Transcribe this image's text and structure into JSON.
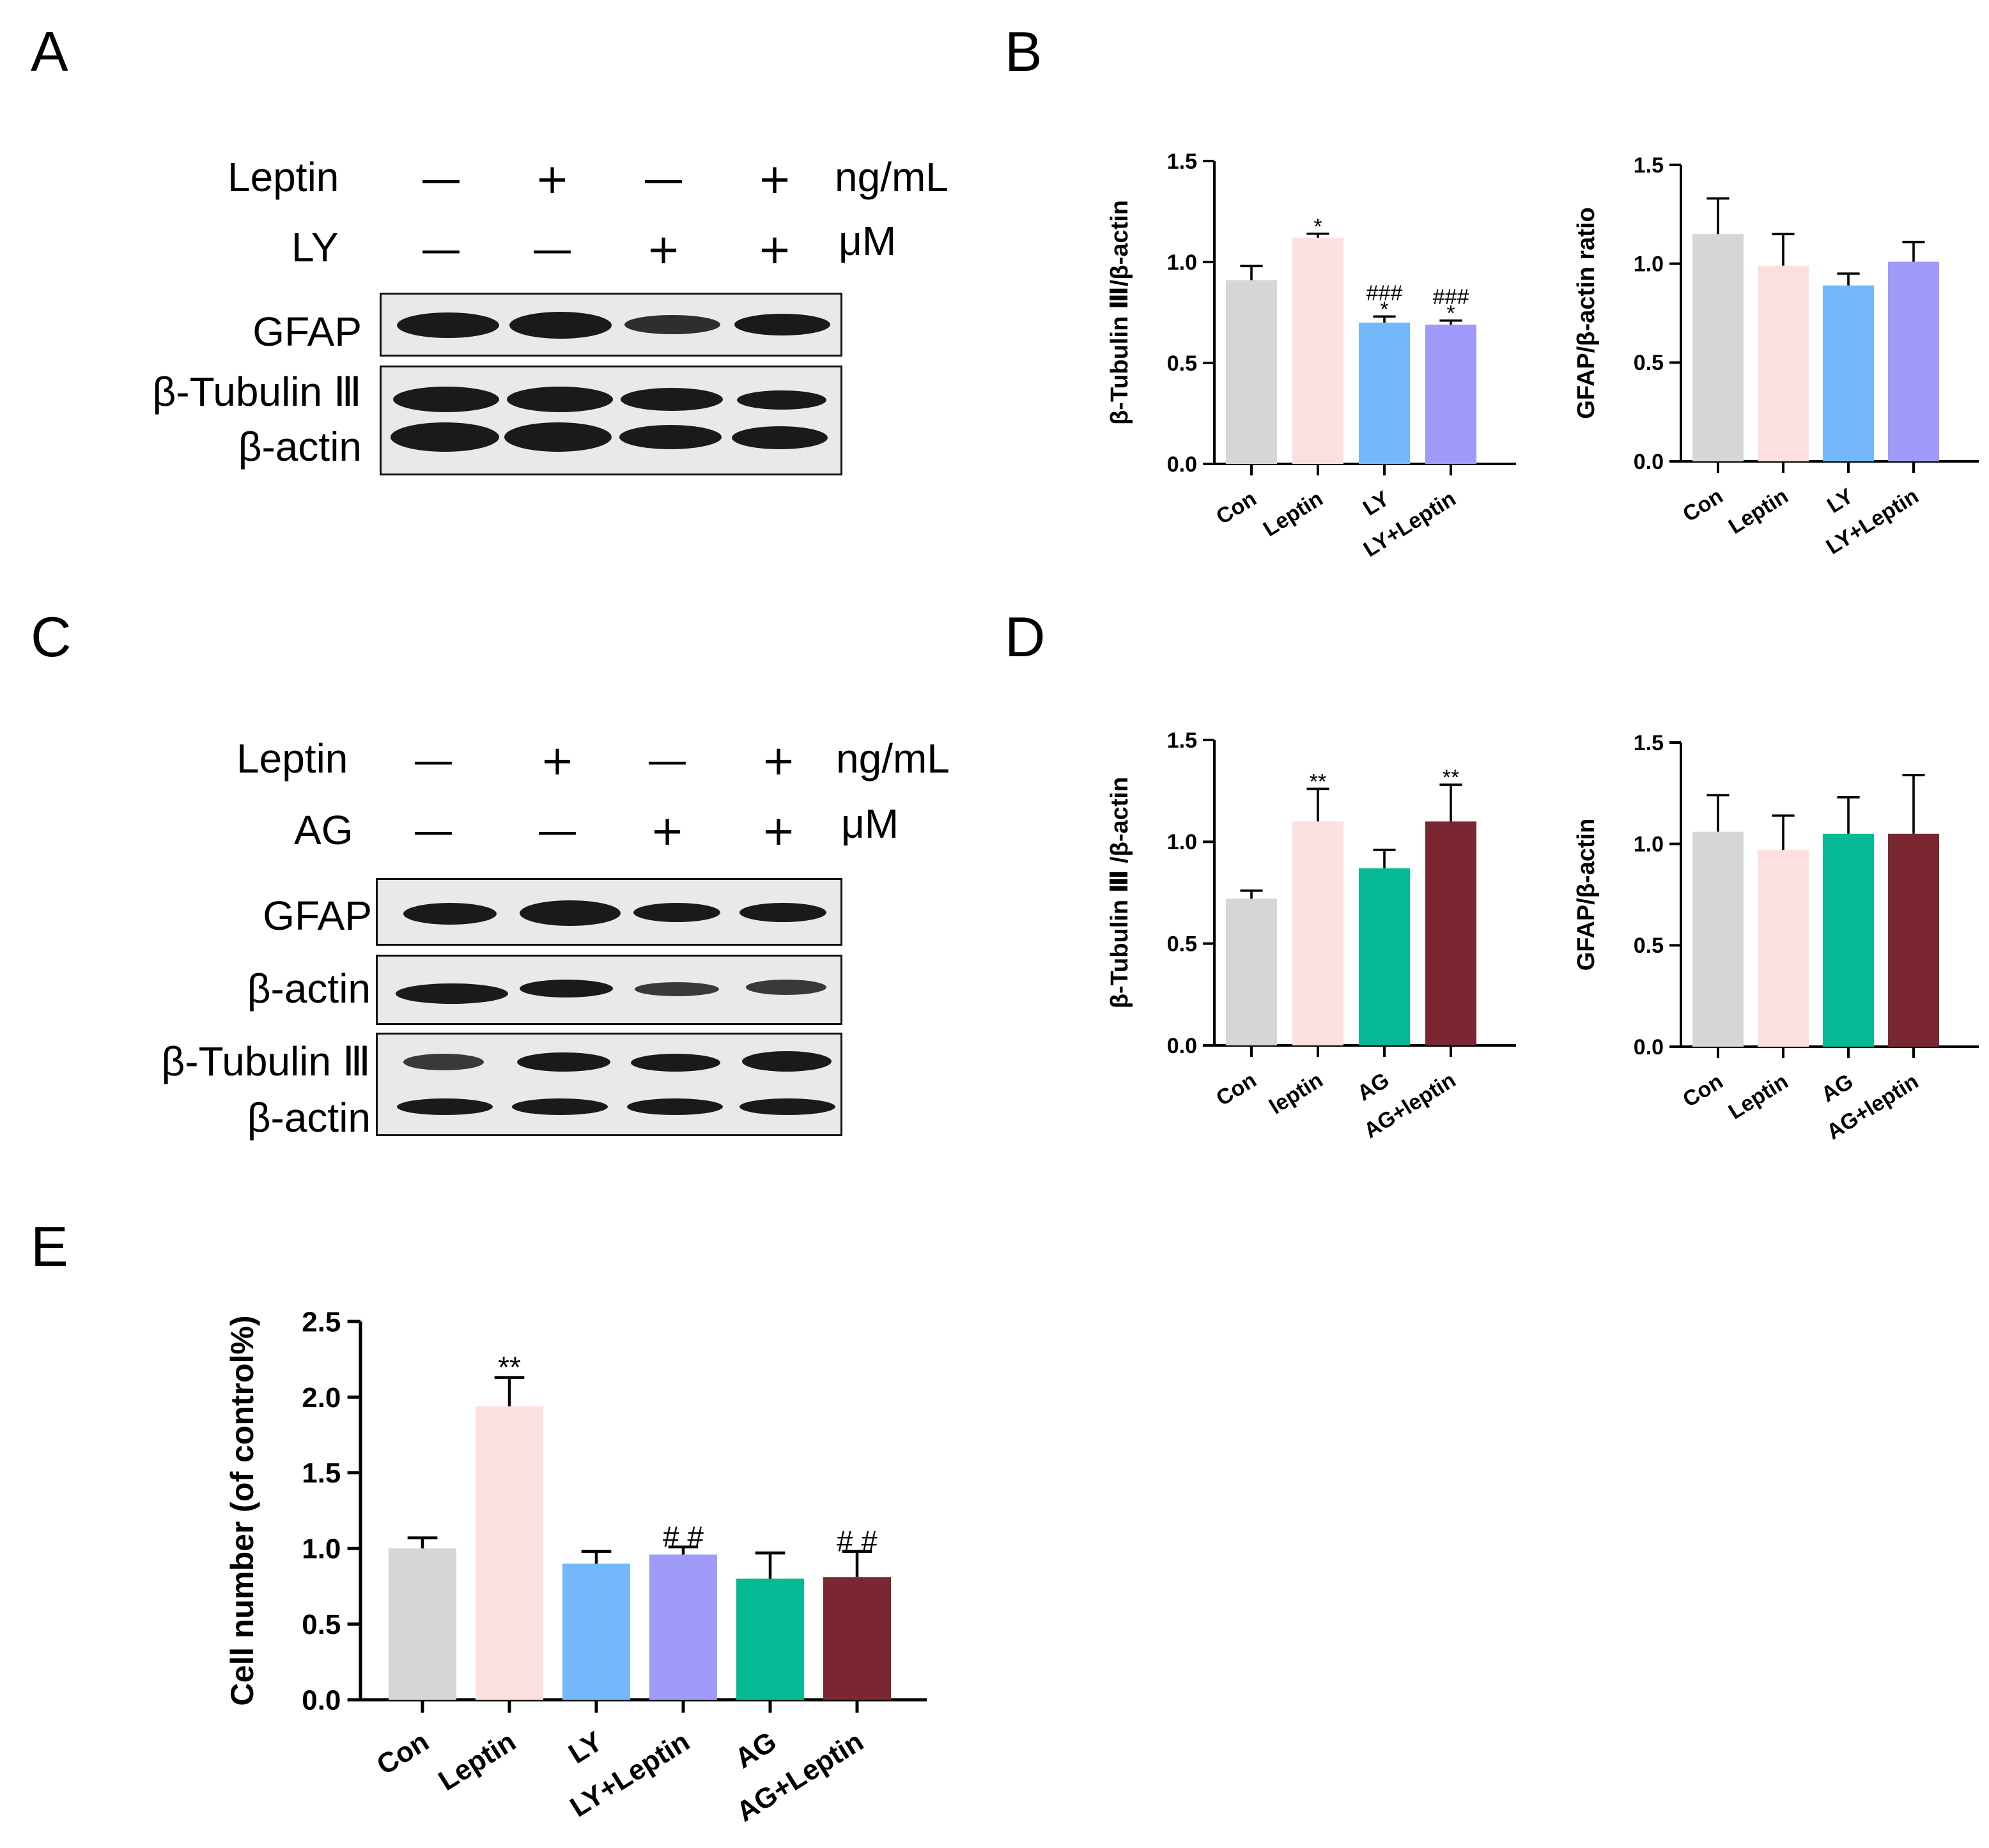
{
  "panel_labels": [
    "A",
    "B",
    "C",
    "D",
    "E"
  ],
  "blot_A": {
    "treatments": [
      {
        "name": "Leptin",
        "signs": [
          "—",
          "+",
          "—",
          "+"
        ],
        "unit": "ng/mL"
      },
      {
        "name": "LY",
        "signs": [
          "—",
          "—",
          "+",
          "+"
        ],
        "unit": "μM"
      }
    ],
    "rows": [
      "GFAP",
      "β-Tubulin Ⅲ",
      "β-actin"
    ]
  },
  "blot_C": {
    "treatments": [
      {
        "name": "Leptin",
        "signs": [
          "—",
          "+",
          "—",
          "+"
        ],
        "unit": "ng/mL"
      },
      {
        "name": "AG",
        "signs": [
          "—",
          "—",
          "+",
          "+"
        ],
        "unit": "μM"
      }
    ],
    "rows": [
      "GFAP",
      "β-actin",
      "β-Tubulin Ⅲ",
      "β-actin"
    ]
  },
  "colors": {
    "Con": "#d6d6d6",
    "Leptin": "#fce0e0",
    "LY": "#74b8fb",
    "LY+Leptin": "#a09afa",
    "AG": "#06b995",
    "AG+Leptin": "#7a2731"
  },
  "chart_data": [
    {
      "id": "B1",
      "type": "bar",
      "title": "",
      "xlabel": "",
      "ylabel": "β-Tubulin Ⅲ/β-actin",
      "ylim": [
        0,
        1.5
      ],
      "yticks": [
        "0.0",
        "0.5",
        "1.0",
        "1.5"
      ],
      "categories": [
        "Con",
        "Leptin",
        "LY",
        "LY+Leptin"
      ],
      "values": [
        0.91,
        1.12,
        0.7,
        0.69
      ],
      "errors": [
        0.07,
        0.02,
        0.03,
        0.02
      ],
      "annotations": [
        [
          ""
        ],
        [
          "*"
        ],
        [
          "###",
          "*"
        ],
        [
          "###",
          "*"
        ]
      ]
    },
    {
      "id": "B2",
      "type": "bar",
      "title": "",
      "xlabel": "",
      "ylabel": "GFAP/β-actin ratio",
      "ylim": [
        0,
        1.5
      ],
      "yticks": [
        "0.0",
        "0.5",
        "1.0",
        "1.5"
      ],
      "categories": [
        "Con",
        "Leptin",
        "LY",
        "LY+Leptin"
      ],
      "values": [
        1.15,
        0.99,
        0.89,
        1.01
      ],
      "errors": [
        0.18,
        0.16,
        0.06,
        0.1
      ],
      "annotations": [
        [
          ""
        ],
        [
          ""
        ],
        [
          ""
        ],
        [
          ""
        ]
      ]
    },
    {
      "id": "D1",
      "type": "bar",
      "title": "",
      "xlabel": "",
      "ylabel": "β-Tubulin Ⅲ /β-actin",
      "ylim": [
        0,
        1.5
      ],
      "yticks": [
        "0.0",
        "0.5",
        "1.0",
        "1.5"
      ],
      "categories": [
        "Con",
        "leptin",
        "AG",
        "AG+leptin"
      ],
      "values": [
        0.72,
        1.1,
        0.87,
        1.1
      ],
      "errors": [
        0.04,
        0.16,
        0.09,
        0.18
      ],
      "annotations": [
        [
          ""
        ],
        [
          "**"
        ],
        [
          ""
        ],
        [
          "**"
        ]
      ]
    },
    {
      "id": "D2",
      "type": "bar",
      "title": "",
      "xlabel": "",
      "ylabel": "GFAP/β-actin",
      "ylim": [
        0,
        1.5
      ],
      "yticks": [
        "0.0",
        "0.5",
        "1.0",
        "1.5"
      ],
      "categories": [
        "Con",
        "Leptin",
        "AG",
        "AG+leptin"
      ],
      "values": [
        1.06,
        0.97,
        1.05,
        1.05
      ],
      "errors": [
        0.18,
        0.17,
        0.18,
        0.29
      ],
      "annotations": [
        [
          ""
        ],
        [
          ""
        ],
        [
          ""
        ],
        [
          ""
        ]
      ]
    },
    {
      "id": "E",
      "type": "bar",
      "title": "",
      "xlabel": "",
      "ylabel": "Cell number (of control%)",
      "ylim": [
        0,
        2.5
      ],
      "yticks": [
        "0.0",
        "0.5",
        "1.0",
        "1.5",
        "2.0",
        "2.5"
      ],
      "categories": [
        "Con",
        "Leptin",
        "LY",
        "LY+Leptin",
        "AG",
        "AG+Leptin"
      ],
      "values": [
        1.0,
        1.94,
        0.9,
        0.96,
        0.8,
        0.81
      ],
      "errors": [
        0.07,
        0.19,
        0.08,
        0.05,
        0.17,
        0.17
      ],
      "annotations": [
        [
          ""
        ],
        [
          "**"
        ],
        [
          ""
        ],
        [
          "# #"
        ],
        [
          ""
        ],
        [
          "# #"
        ]
      ]
    }
  ]
}
